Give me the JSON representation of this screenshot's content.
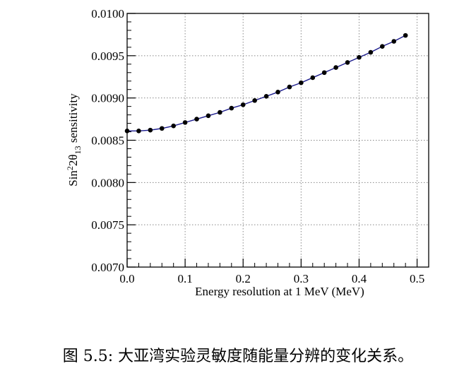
{
  "chart_data": {
    "type": "line",
    "xlabel": "Energy resolution at 1 MeV (MeV)",
    "ylabel": {
      "prefix": "Sin",
      "sup": "2",
      "mid": "2θ",
      "sub": "13",
      "suffix": " sensitivity"
    },
    "xlim": [
      0,
      0.52
    ],
    "ylim": [
      0.007,
      0.01
    ],
    "x_ticks": [
      "0.0",
      "0.1",
      "0.2",
      "0.3",
      "0.4",
      "0.5"
    ],
    "x_tick_values": [
      0,
      0.1,
      0.2,
      0.3,
      0.4,
      0.5
    ],
    "y_ticks": [
      "0.0070",
      "0.0075",
      "0.0080",
      "0.0085",
      "0.0090",
      "0.0095",
      "0.0100"
    ],
    "y_tick_values": [
      0.007,
      0.0075,
      0.008,
      0.0085,
      0.009,
      0.0095,
      0.01
    ],
    "grid": true,
    "line_color": "#1a1a8c",
    "marker_color": "#000000",
    "series": [
      {
        "x": [
          0.0,
          0.02,
          0.04,
          0.06,
          0.08,
          0.1,
          0.12,
          0.14,
          0.16,
          0.18,
          0.2,
          0.22,
          0.24,
          0.26,
          0.28,
          0.3,
          0.32,
          0.34,
          0.36,
          0.38,
          0.4,
          0.42,
          0.44,
          0.46,
          0.48
        ],
        "y": [
          0.00861,
          0.00861,
          0.00862,
          0.00864,
          0.00867,
          0.00871,
          0.00875,
          0.00879,
          0.00883,
          0.00888,
          0.00892,
          0.00897,
          0.00902,
          0.00907,
          0.00913,
          0.00918,
          0.00924,
          0.0093,
          0.00936,
          0.00942,
          0.00948,
          0.00954,
          0.00961,
          0.00967,
          0.00974
        ]
      }
    ]
  },
  "caption": "图 5.5: 大亚湾实验灵敏度随能量分辨的变化关系。"
}
